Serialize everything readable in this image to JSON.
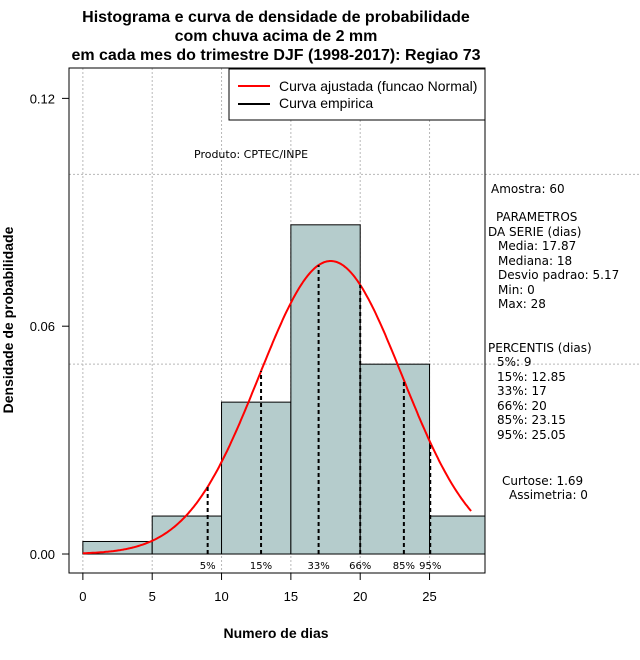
{
  "chart_data": {
    "type": "histogram",
    "title": [
      "Histograma e curva de densidade de probabilidade",
      "com chuva acima de 2 mm",
      "em cada mes do trimestre DJF (1998-2017): Regiao 73"
    ],
    "xlabel": "Numero de dias",
    "ylabel": "Densidade de probabilidade",
    "xlim": [
      -1,
      29
    ],
    "ylim": [
      -0.005,
      0.128
    ],
    "xticks": [
      0,
      5,
      10,
      15,
      20,
      25
    ],
    "yticks": [
      0.0,
      0.06,
      0.12
    ],
    "ytick_labels": [
      "0.00",
      "0.06",
      "0.12"
    ],
    "hgrid": [
      0.1,
      0.05
    ],
    "bins": [
      {
        "from": 0,
        "to": 5,
        "density": 0.0033
      },
      {
        "from": 5,
        "to": 10,
        "density": 0.01
      },
      {
        "from": 10,
        "to": 15,
        "density": 0.04
      },
      {
        "from": 15,
        "to": 20,
        "density": 0.0867
      },
      {
        "from": 20,
        "to": 25,
        "density": 0.05
      },
      {
        "from": 25,
        "to": 29,
        "density": 0.01
      }
    ],
    "normal_fit": {
      "name": "Curva ajustada (funcao Normal)",
      "mean": 17.87,
      "sd": 5.17,
      "x_from": 0,
      "x_to": 28,
      "color": "#ff0000"
    },
    "empirical": {
      "name": "Curva empirica",
      "color": "#000000"
    },
    "percentile_lines": [
      {
        "label": "5%",
        "x": 9
      },
      {
        "label": "15%",
        "x": 12.85
      },
      {
        "label": "33%",
        "x": 17
      },
      {
        "label": "66%",
        "x": 20
      },
      {
        "label": "85%",
        "x": 23.15
      },
      {
        "label": "95%",
        "x": 25.05
      }
    ],
    "bar_color": "#b5cccc",
    "legend_position": "top-right",
    "annotation": "Produto: CPTEC/INPE"
  },
  "stats": {
    "amostra": "Amostra: 60",
    "param_title1": "PARAMETROS",
    "param_title2": "DA SERIE (dias)",
    "media": "Media: 17.87",
    "mediana": "Mediana: 18",
    "desvio": "Desvio padrao: 5.17",
    "min": "Min: 0",
    "max": "Max: 28",
    "perc_title": "PERCENTIS (dias)",
    "p5": "5%: 9",
    "p15": "15%: 12.85",
    "p33": "33%: 17",
    "p66": "66%: 20",
    "p85": "85%: 23.15",
    "p95": "95%: 25.05",
    "curtose": "Curtose: 1.69",
    "assimetria": "Assimetria: 0"
  }
}
